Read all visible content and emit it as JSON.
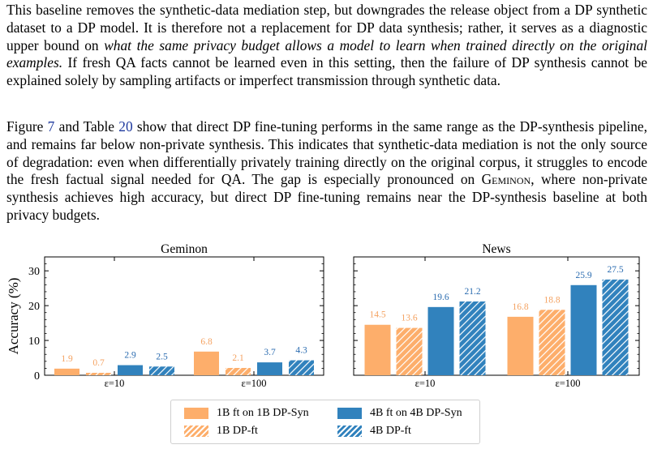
{
  "paragraph1": {
    "part1": "This baseline removes the synthetic-data mediation step, but downgrades the release object from a DP synthetic dataset to a DP model. It is therefore not a replacement for DP data synthesis; rather, it serves as a diagnostic upper bound on ",
    "italic": "what the same privacy budget allows a model to learn when trained directly on the original examples.",
    "part2": " If fresh QA facts cannot be learned even in this setting, then the failure of DP synthesis cannot be explained solely by sampling artifacts or imperfect transmission through synthetic data."
  },
  "paragraph2": {
    "t1": "Figure ",
    "ref1": "7",
    "t2": " and Table ",
    "ref2": "20",
    "t3": " show that direct DP fine-tuning performs in the same range as the DP-synthesis pipeline, and remains far below non-private synthesis. This indicates that synthetic-data mediation is not the only source of degradation: even when differentially privately training directly on the original corpus, it struggles to encode the fresh factual signal needed for QA. The gap is especially pronounced on ",
    "dataset": "Geminon",
    "t4": ", where non-private synthesis achieves high accuracy, but direct DP fine-tuning remains near the DP-synthesis baseline at both privacy budgets."
  },
  "chart_data": {
    "type": "bar",
    "ylabel": "Accuracy (%)",
    "y_ticks": [
      "0",
      "10",
      "20",
      "30"
    ],
    "colors": {
      "orange": "#fdae6b",
      "blue": "#3182bd",
      "orange_label": "#f4a261",
      "blue_label": "#2b6cb0"
    },
    "panels": [
      {
        "title": "Geminon",
        "ylim": [
          0,
          34
        ],
        "categories": [
          "ε=10",
          "ε=100"
        ],
        "series": [
          {
            "name": "1B ft on 1B DP-Syn",
            "values": [
              1.9,
              6.8
            ],
            "color": "orange",
            "hatch": false
          },
          {
            "name": "1B DP-ft",
            "values": [
              0.7,
              2.1
            ],
            "color": "orange",
            "hatch": true
          },
          {
            "name": "4B ft on 4B DP-Syn",
            "values": [
              2.9,
              3.7
            ],
            "color": "blue",
            "hatch": false
          },
          {
            "name": "4B DP-ft",
            "values": [
              2.5,
              4.3
            ],
            "color": "blue",
            "hatch": true
          }
        ]
      },
      {
        "title": "News",
        "ylim": [
          0,
          34
        ],
        "categories": [
          "ε=10",
          "ε=100"
        ],
        "series": [
          {
            "name": "1B ft on 1B DP-Syn",
            "values": [
              14.5,
              16.8
            ],
            "color": "orange",
            "hatch": false
          },
          {
            "name": "1B DP-ft",
            "values": [
              13.6,
              18.8
            ],
            "color": "orange",
            "hatch": true
          },
          {
            "name": "4B ft on 4B DP-Syn",
            "values": [
              19.6,
              25.9
            ],
            "color": "blue",
            "hatch": false
          },
          {
            "name": "4B DP-ft",
            "values": [
              21.2,
              27.5
            ],
            "color": "blue",
            "hatch": true
          }
        ]
      }
    ],
    "legend": {
      "placement": "bottom-center",
      "items": [
        {
          "label": "1B ft on 1B DP-Syn"
        },
        {
          "label": "4B ft on 4B DP-Syn"
        },
        {
          "label": "1B DP-ft"
        },
        {
          "label": "4B DP-ft"
        }
      ]
    }
  }
}
